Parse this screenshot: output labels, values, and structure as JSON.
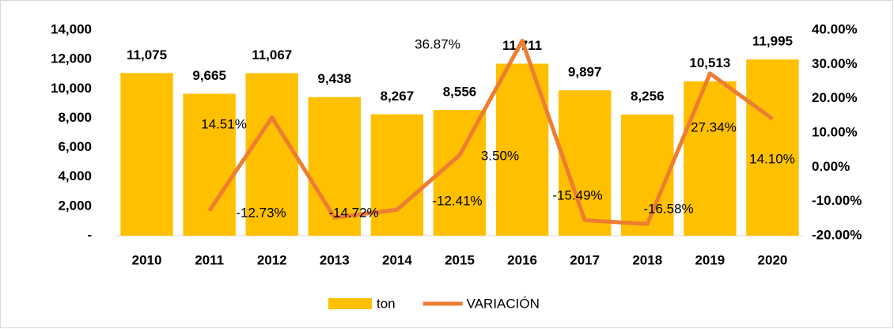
{
  "chart_data": {
    "type": "bar",
    "categories": [
      "2010",
      "2011",
      "2012",
      "2013",
      "2014",
      "2015",
      "2016",
      "2017",
      "2018",
      "2019",
      "2020"
    ],
    "series": [
      {
        "name": "ton",
        "type": "bar",
        "color": "#ffc000",
        "values": [
          11075,
          9665,
          11067,
          9438,
          8267,
          8556,
          11711,
          9897,
          8256,
          10513,
          11995
        ],
        "value_labels": [
          "11,075",
          "9,665",
          "11,067",
          "9,438",
          "8,267",
          "8,556",
          "11,711",
          "9,897",
          "8,256",
          "10,513",
          "11,995"
        ]
      },
      {
        "name": "VARIACIÓN",
        "type": "line",
        "color": "#ed7d31",
        "axis": "y2",
        "values": [
          null,
          -12.73,
          14.51,
          -14.72,
          -12.41,
          3.5,
          36.87,
          -15.49,
          -16.58,
          27.34,
          14.1
        ],
        "value_labels": [
          null,
          "-12.73%",
          "14.51%",
          "-14.72%",
          "-12.41%",
          "3.50%",
          "36.87%",
          "-15.49%",
          "-16.58%",
          "27.34%",
          "14.10%"
        ]
      }
    ],
    "ylim": [
      0,
      14000
    ],
    "yticks": [
      {
        "value": 0,
        "label": "-"
      },
      {
        "value": 2000,
        "label": "2,000"
      },
      {
        "value": 4000,
        "label": "4,000"
      },
      {
        "value": 6000,
        "label": "6,000"
      },
      {
        "value": 8000,
        "label": "8,000"
      },
      {
        "value": 10000,
        "label": "10,000"
      },
      {
        "value": 12000,
        "label": "12,000"
      },
      {
        "value": 14000,
        "label": "14,000"
      }
    ],
    "y2lim": [
      -20,
      40
    ],
    "y2ticks": [
      {
        "value": -20,
        "label": "-20.00%"
      },
      {
        "value": -10,
        "label": "-10.00%"
      },
      {
        "value": 0,
        "label": "0.00%"
      },
      {
        "value": 10,
        "label": "10.00%"
      },
      {
        "value": 20,
        "label": "20.00%"
      },
      {
        "value": 30,
        "label": "30.00%"
      },
      {
        "value": 40,
        "label": "40.00%"
      }
    ],
    "legend": "bottom"
  }
}
